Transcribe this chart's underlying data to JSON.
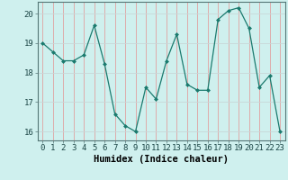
{
  "x": [
    0,
    1,
    2,
    3,
    4,
    5,
    6,
    7,
    8,
    9,
    10,
    11,
    12,
    13,
    14,
    15,
    16,
    17,
    18,
    19,
    20,
    21,
    22,
    23
  ],
  "y": [
    19.0,
    18.7,
    18.4,
    18.4,
    18.6,
    19.6,
    18.3,
    16.6,
    16.2,
    16.0,
    17.5,
    17.1,
    18.4,
    19.3,
    17.6,
    17.4,
    17.4,
    19.8,
    20.1,
    20.2,
    19.5,
    17.5,
    17.9,
    16.0
  ],
  "xlabel": "Humidex (Indice chaleur)",
  "xlim": [
    -0.5,
    23.5
  ],
  "ylim": [
    15.7,
    20.4
  ],
  "yticks": [
    16,
    17,
    18,
    19,
    20
  ],
  "xticks": [
    0,
    1,
    2,
    3,
    4,
    5,
    6,
    7,
    8,
    9,
    10,
    11,
    12,
    13,
    14,
    15,
    16,
    17,
    18,
    19,
    20,
    21,
    22,
    23
  ],
  "line_color": "#1a7a6e",
  "marker": "D",
  "marker_size": 2.5,
  "bg_color": "#cff0ee",
  "grid_color_major": "#e8c8c8",
  "grid_color_minor": "#dde8e8",
  "label_fontsize": 7.5,
  "tick_fontsize": 6.5
}
